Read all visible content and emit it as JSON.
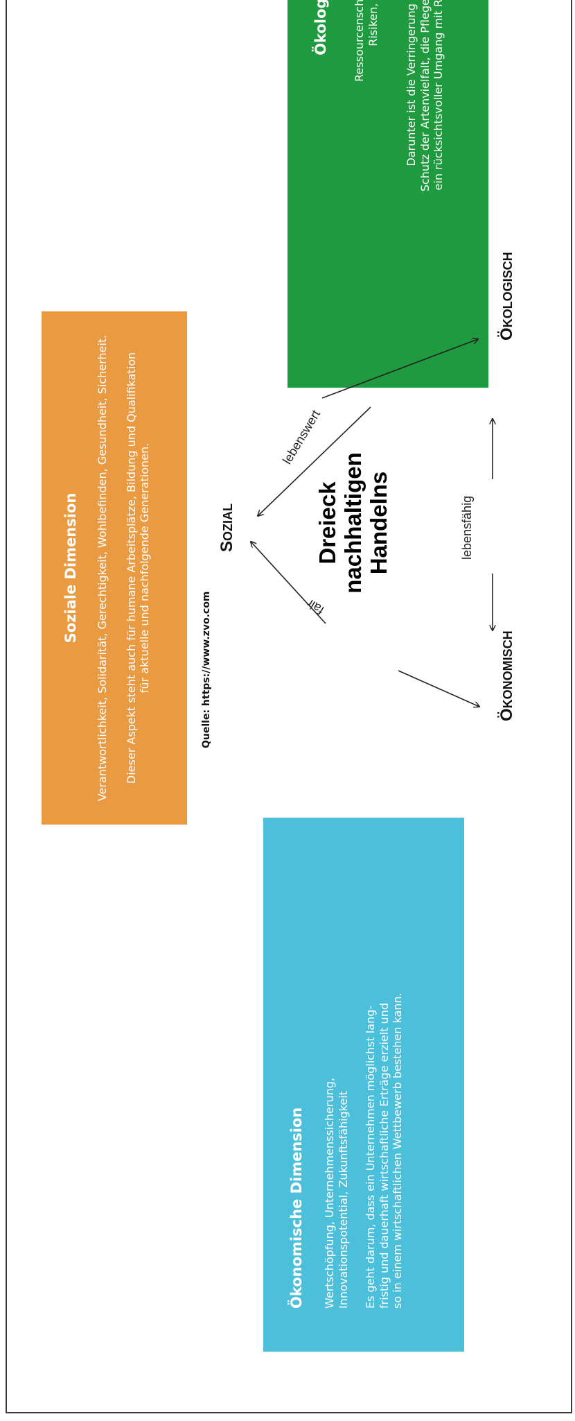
{
  "sozial_box": {
    "title": "Soziale Dimension",
    "line1": "Verantwortlichkeit, Solidarität, Gerechtigkeit, Wohlbefinden, Gesundheit, Sicherheit.",
    "line2": "Dieser Aspekt steht auch für humane Arbeitsplätze, Bildung und Qualifikation",
    "line3": "für aktuelle und nachfolgende Generationen.",
    "color": "#ea9a41"
  },
  "oekonomisch_box": {
    "title": "Ökonomische Dimension",
    "line1": "Wertschöpfung, Unternehmenssicherung,",
    "line2": "Innovationspotential, Zukunftsfähigkeit",
    "line3": "Es geht darum, dass ein Unternehmen möglichst lang-",
    "line4": "fristig und dauerhaft wirtschaftliche Erträge erzielt und",
    "line5": "so in einem wirtschaftlichen Wettbewerb bestehen kann.",
    "color": "#4cbfdb"
  },
  "oekologisch_box": {
    "title": "Ökologische Dimension",
    "line1": "Ressourcenschonung, Minimierung von",
    "line2": "Risiken, Erhalt von Ökosystemen",
    "line3": "Darunter ist die Verringerung von Treibhausgasen, der",
    "line4": "Schutz der Artenvielfalt, die Pflege von Lebensräumen und",
    "line5": "ein rücksichtsvoller Umgang mit Ressourcen zu verstehen.",
    "color": "#1f9a3e"
  },
  "source": "Quelle: https://www.zvo.com",
  "triangle": {
    "corner_sozial": {
      "first": "S",
      "rest": "OZIAL"
    },
    "corner_oekonomisch": {
      "first": "Ö",
      "rest": "KONOMISCH"
    },
    "corner_oekologisch": {
      "first": "Ö",
      "rest": "KOLOGISCH"
    },
    "edge_fair": "fair",
    "edge_lebenswert": "lebenswert",
    "edge_lebensfaehig": "lebensfähig",
    "center_line1": "Dreieck",
    "center_line2": "nachhaltigen",
    "center_line3": "Handelns"
  }
}
